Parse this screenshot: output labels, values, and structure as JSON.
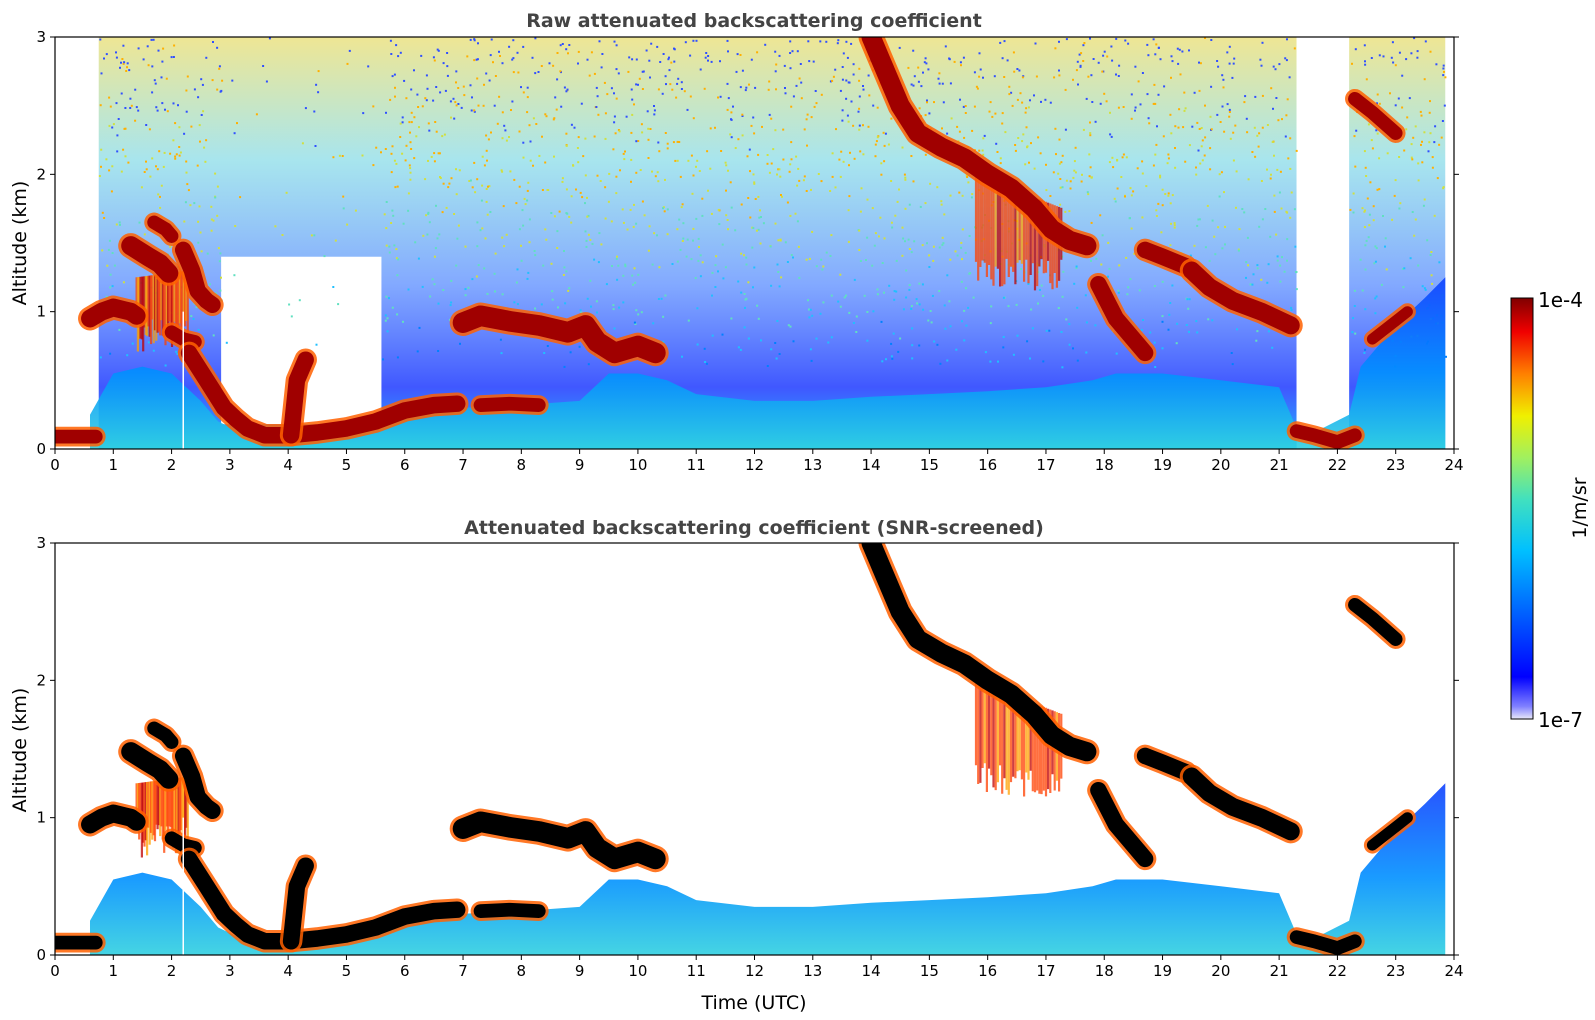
{
  "chart_data": [
    {
      "type": "heatmap",
      "title": "Raw attenuated backscattering coefficient",
      "ylabel": "Altitude (km)",
      "xlabel": "",
      "xlim": [
        0,
        24
      ],
      "ylim": [
        0,
        3
      ],
      "xticks": [
        "0",
        "1",
        "2",
        "3",
        "4",
        "5",
        "6",
        "7",
        "8",
        "9",
        "10",
        "11",
        "12",
        "13",
        "14",
        "15",
        "16",
        "17",
        "18",
        "19",
        "20",
        "21",
        "22",
        "23",
        "24"
      ],
      "yticks": [
        "0",
        "1",
        "2",
        "3"
      ],
      "noise_top": "rgb(225,210,60)",
      "layers": [
        {
          "x": [
            0.0,
            0.7
          ],
          "y": [
            0.09,
            0.09
          ],
          "w": 0.1
        },
        {
          "x": [
            0.6,
            0.8,
            1.0,
            1.3,
            1.4
          ],
          "y": [
            0.95,
            1.0,
            1.03,
            1.0,
            0.97
          ],
          "w": 0.13
        },
        {
          "x": [
            1.3,
            1.6,
            1.8,
            1.95
          ],
          "y": [
            1.48,
            1.4,
            1.35,
            1.28
          ],
          "w": 0.14
        },
        {
          "x": [
            1.7,
            1.9,
            2.0
          ],
          "y": [
            1.65,
            1.6,
            1.55
          ],
          "w": 0.1
        },
        {
          "x": [
            2.2,
            2.35,
            2.45,
            2.6,
            2.7
          ],
          "y": [
            1.45,
            1.3,
            1.15,
            1.08,
            1.05
          ],
          "w": 0.12
        },
        {
          "x": [
            2.0,
            2.2,
            2.4
          ],
          "y": [
            0.85,
            0.8,
            0.78
          ],
          "w": 0.1
        },
        {
          "x": [
            2.3,
            2.6,
            2.9,
            3.1,
            3.3,
            3.6,
            4.0,
            4.5,
            5.0,
            5.5,
            6.0,
            6.5,
            6.9
          ],
          "y": [
            0.7,
            0.5,
            0.3,
            0.22,
            0.15,
            0.1,
            0.1,
            0.12,
            0.15,
            0.2,
            0.28,
            0.32,
            0.33
          ],
          "w": 0.12
        },
        {
          "x": [
            4.05,
            4.15,
            4.3
          ],
          "y": [
            0.1,
            0.5,
            0.65
          ],
          "w": 0.12
        },
        {
          "x": [
            7.0,
            7.3,
            7.8,
            8.3,
            8.8,
            9.1,
            9.3,
            9.6,
            10.0,
            10.3
          ],
          "y": [
            0.92,
            0.97,
            0.93,
            0.9,
            0.85,
            0.9,
            0.78,
            0.7,
            0.75,
            0.7
          ],
          "w": 0.15
        },
        {
          "x": [
            7.3,
            7.8,
            8.3
          ],
          "y": [
            0.32,
            0.33,
            0.32
          ],
          "w": 0.1
        },
        {
          "x": [
            14.0,
            14.2,
            14.5,
            14.8,
            15.2,
            15.6,
            16.0,
            16.4,
            16.8,
            17.1,
            17.4,
            17.7
          ],
          "y": [
            3.0,
            2.8,
            2.5,
            2.3,
            2.2,
            2.12,
            2.0,
            1.9,
            1.75,
            1.6,
            1.52,
            1.48
          ],
          "w": 0.14
        },
        {
          "x": [
            17.9,
            18.2,
            18.5,
            18.7
          ],
          "y": [
            1.2,
            0.95,
            0.8,
            0.7
          ],
          "w": 0.12
        },
        {
          "x": [
            18.7,
            19.0,
            19.4
          ],
          "y": [
            1.45,
            1.4,
            1.33
          ],
          "w": 0.12
        },
        {
          "x": [
            19.5,
            19.8,
            20.2,
            20.7,
            21.2
          ],
          "y": [
            1.3,
            1.18,
            1.08,
            1.0,
            0.9
          ],
          "w": 0.13
        },
        {
          "x": [
            21.3,
            21.6,
            22.0,
            22.3
          ],
          "y": [
            0.13,
            0.1,
            0.05,
            0.1
          ],
          "w": 0.1
        },
        {
          "x": [
            22.3,
            22.6,
            23.0
          ],
          "y": [
            2.55,
            2.45,
            2.3
          ],
          "w": 0.1
        },
        {
          "x": [
            22.6,
            22.9,
            23.2
          ],
          "y": [
            0.8,
            0.9,
            1.0
          ],
          "w": 0.08
        }
      ],
      "streaks": [
        {
          "x0": 15.8,
          "x1": 17.3,
          "top": [
            2.0,
            1.75
          ],
          "bottom": 1.15
        },
        {
          "x0": 1.4,
          "x1": 2.3,
          "top": [
            1.25,
            1.3
          ],
          "bottom": 0.7
        }
      ],
      "colorbar": {
        "min_label": "1e-7",
        "max_label": "1e-4",
        "label": "1/m/sr",
        "scale": "log"
      }
    },
    {
      "type": "heatmap",
      "title": "Attenuated backscattering coefficient (SNR-screened)",
      "ylabel": "Altitude (km)",
      "xlabel": "Time (UTC)",
      "xlim": [
        0,
        24
      ],
      "ylim": [
        0,
        3
      ],
      "xticks": [
        "0",
        "1",
        "2",
        "3",
        "4",
        "5",
        "6",
        "7",
        "8",
        "9",
        "10",
        "11",
        "12",
        "13",
        "14",
        "15",
        "16",
        "17",
        "18",
        "19",
        "20",
        "21",
        "22",
        "23",
        "24"
      ],
      "yticks": [
        "0",
        "1",
        "2",
        "3"
      ],
      "noise_top": "none",
      "layers": [
        {
          "x": [
            0.0,
            0.7
          ],
          "y": [
            0.09,
            0.09
          ],
          "w": 0.1
        },
        {
          "x": [
            0.6,
            0.8,
            1.0,
            1.3,
            1.4
          ],
          "y": [
            0.95,
            1.0,
            1.03,
            1.0,
            0.97
          ],
          "w": 0.13
        },
        {
          "x": [
            1.3,
            1.6,
            1.8,
            1.95
          ],
          "y": [
            1.48,
            1.4,
            1.35,
            1.28
          ],
          "w": 0.14
        },
        {
          "x": [
            1.7,
            1.9,
            2.0
          ],
          "y": [
            1.65,
            1.6,
            1.55
          ],
          "w": 0.1
        },
        {
          "x": [
            2.2,
            2.35,
            2.45,
            2.6,
            2.7
          ],
          "y": [
            1.45,
            1.3,
            1.15,
            1.08,
            1.05
          ],
          "w": 0.12
        },
        {
          "x": [
            2.0,
            2.2,
            2.4
          ],
          "y": [
            0.85,
            0.8,
            0.78
          ],
          "w": 0.1
        },
        {
          "x": [
            2.3,
            2.6,
            2.9,
            3.1,
            3.3,
            3.6,
            4.0,
            4.5,
            5.0,
            5.5,
            6.0,
            6.5,
            6.9
          ],
          "y": [
            0.7,
            0.5,
            0.3,
            0.22,
            0.15,
            0.1,
            0.1,
            0.12,
            0.15,
            0.2,
            0.28,
            0.32,
            0.33
          ],
          "w": 0.12
        },
        {
          "x": [
            4.05,
            4.15,
            4.3
          ],
          "y": [
            0.1,
            0.5,
            0.65
          ],
          "w": 0.12
        },
        {
          "x": [
            7.0,
            7.3,
            7.8,
            8.3,
            8.8,
            9.1,
            9.3,
            9.6,
            10.0,
            10.3
          ],
          "y": [
            0.92,
            0.97,
            0.93,
            0.9,
            0.85,
            0.9,
            0.78,
            0.7,
            0.75,
            0.7
          ],
          "w": 0.15
        },
        {
          "x": [
            7.3,
            7.8,
            8.3
          ],
          "y": [
            0.32,
            0.33,
            0.32
          ],
          "w": 0.1
        },
        {
          "x": [
            14.0,
            14.2,
            14.5,
            14.8,
            15.2,
            15.6,
            16.0,
            16.4,
            16.8,
            17.1,
            17.4,
            17.7
          ],
          "y": [
            3.0,
            2.8,
            2.5,
            2.3,
            2.2,
            2.12,
            2.0,
            1.9,
            1.75,
            1.6,
            1.52,
            1.48
          ],
          "w": 0.14
        },
        {
          "x": [
            17.9,
            18.2,
            18.5,
            18.7
          ],
          "y": [
            1.2,
            0.95,
            0.8,
            0.7
          ],
          "w": 0.12
        },
        {
          "x": [
            18.7,
            19.0,
            19.4
          ],
          "y": [
            1.45,
            1.4,
            1.33
          ],
          "w": 0.12
        },
        {
          "x": [
            19.5,
            19.8,
            20.2,
            20.7,
            21.2
          ],
          "y": [
            1.3,
            1.18,
            1.08,
            1.0,
            0.9
          ],
          "w": 0.13
        },
        {
          "x": [
            21.3,
            21.6,
            22.0,
            22.3
          ],
          "y": [
            0.13,
            0.1,
            0.05,
            0.1
          ],
          "w": 0.1
        },
        {
          "x": [
            22.3,
            22.6,
            23.0
          ],
          "y": [
            2.55,
            2.45,
            2.3
          ],
          "w": 0.1
        },
        {
          "x": [
            22.6,
            22.9,
            23.2
          ],
          "y": [
            0.8,
            0.9,
            1.0
          ],
          "w": 0.08
        }
      ],
      "streaks": [
        {
          "x0": 15.8,
          "x1": 17.3,
          "top": [
            2.0,
            1.75
          ],
          "bottom": 1.15
        },
        {
          "x0": 1.4,
          "x1": 2.3,
          "top": [
            1.25,
            1.3
          ],
          "bottom": 0.7
        }
      ],
      "layer_core_color": "#000000",
      "colorbar": {
        "min_label": "1e-7",
        "max_label": "1e-4",
        "label": "1/m/sr",
        "scale": "log"
      }
    }
  ]
}
